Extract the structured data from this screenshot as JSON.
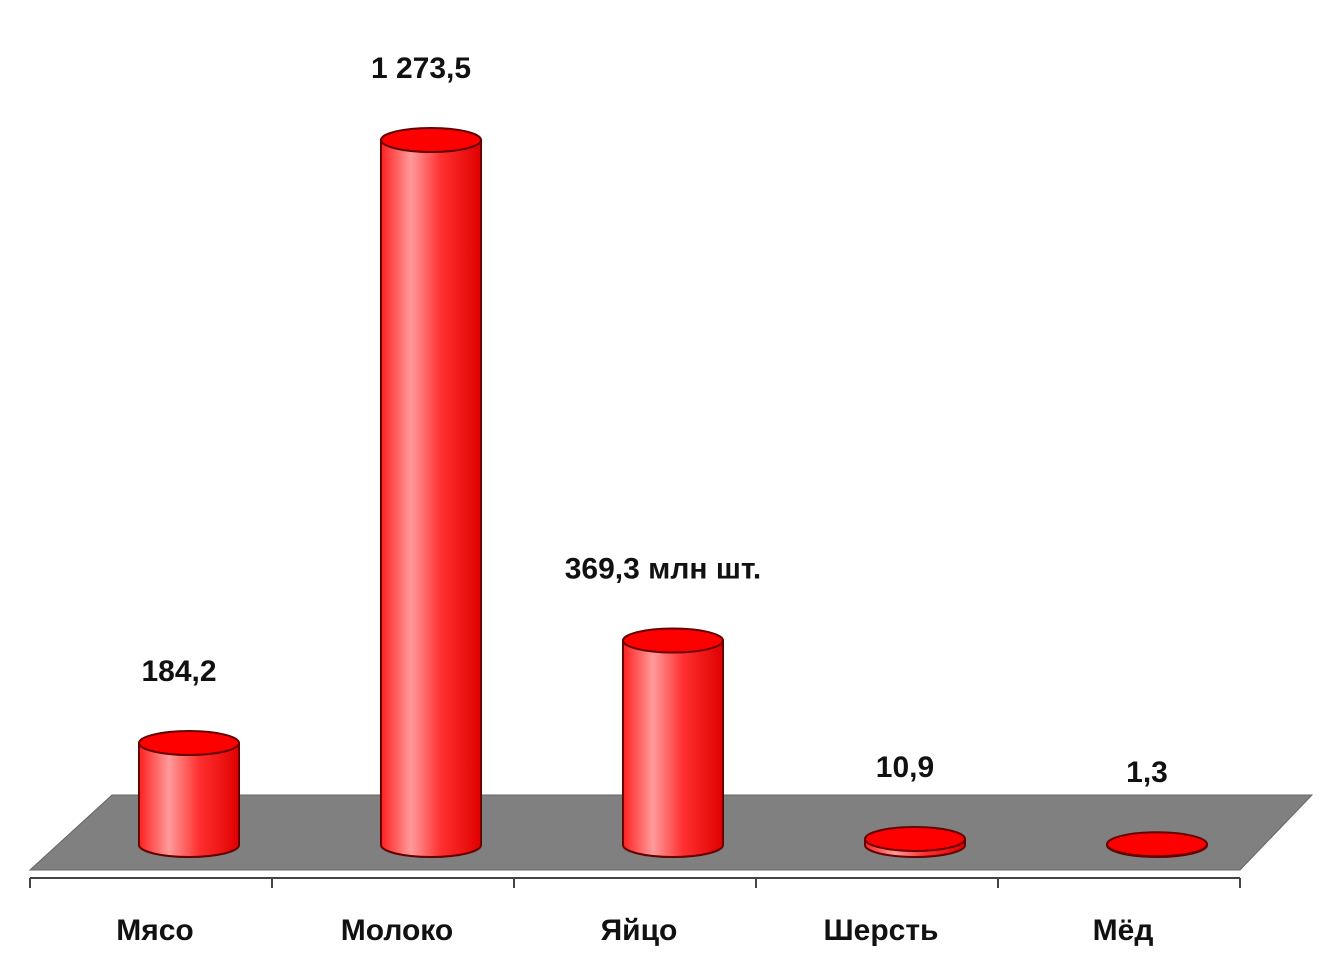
{
  "chart_data": {
    "type": "bar",
    "categories": [
      "Мясо",
      "Молоко",
      "Яйцо",
      "Шерсть",
      "Мёд"
    ],
    "values": [
      184.2,
      1273.5,
      369.3,
      10.9,
      1.3
    ],
    "value_labels": [
      "184,2",
      "1 273,5",
      "369,3 млн шт.",
      "10,9",
      "1,3"
    ],
    "color": "#ff0000"
  }
}
